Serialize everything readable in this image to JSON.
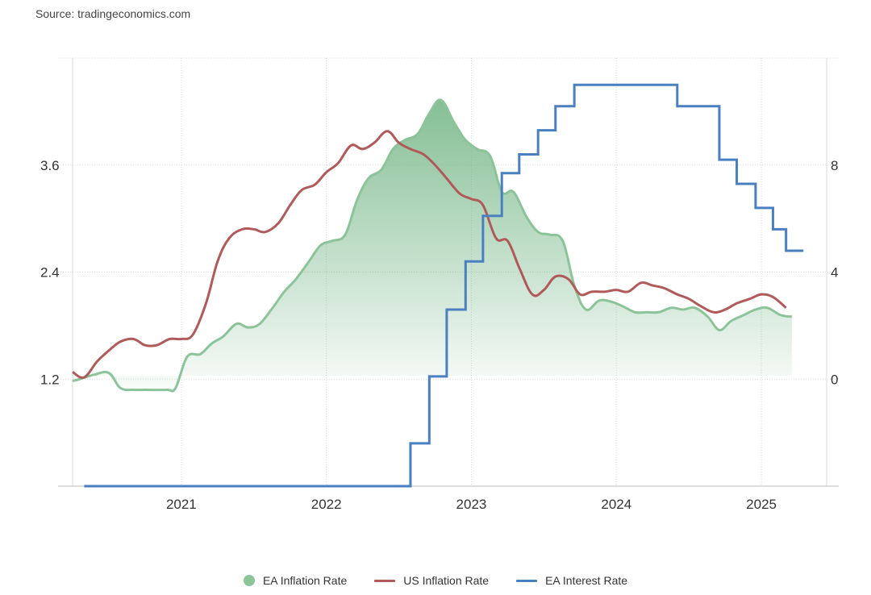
{
  "source": "Source: tradingeconomics.com",
  "colors": {
    "ea_inflation": "#8cc49a",
    "us_inflation": "#b05a5a",
    "ea_interest": "#4a7fc0",
    "grid": "#d8d8d8"
  },
  "chart_data": {
    "type": "line",
    "x_tick_labels": [
      "2021",
      "2022",
      "2023",
      "2024",
      "2025"
    ],
    "x_range": [
      2020.25,
      2025.45
    ],
    "y_left": {
      "ticks": [
        "1.2",
        "2.4",
        "3.6"
      ],
      "range": [
        0.0,
        4.8
      ]
    },
    "y_right": {
      "ticks": [
        "0",
        "4",
        "8"
      ],
      "range": [
        -4,
        12
      ]
    },
    "legend_position": "bottom-center",
    "series": [
      {
        "name": "EA Inflation Rate",
        "style": "area",
        "axis": "left",
        "points": [
          [
            2020.25,
            1.18
          ],
          [
            2020.3,
            1.2
          ],
          [
            2020.4,
            1.25
          ],
          [
            2020.5,
            1.27
          ],
          [
            2020.58,
            1.1
          ],
          [
            2020.67,
            1.08
          ],
          [
            2020.75,
            1.08
          ],
          [
            2020.9,
            1.08
          ],
          [
            2020.96,
            1.1
          ],
          [
            2021.04,
            1.45
          ],
          [
            2021.13,
            1.48
          ],
          [
            2021.21,
            1.6
          ],
          [
            2021.29,
            1.68
          ],
          [
            2021.38,
            1.82
          ],
          [
            2021.46,
            1.78
          ],
          [
            2021.54,
            1.82
          ],
          [
            2021.63,
            2.0
          ],
          [
            2021.71,
            2.18
          ],
          [
            2021.79,
            2.32
          ],
          [
            2021.88,
            2.52
          ],
          [
            2021.96,
            2.7
          ],
          [
            2022.04,
            2.75
          ],
          [
            2022.13,
            2.82
          ],
          [
            2022.21,
            3.2
          ],
          [
            2022.29,
            3.45
          ],
          [
            2022.38,
            3.55
          ],
          [
            2022.46,
            3.78
          ],
          [
            2022.54,
            3.88
          ],
          [
            2022.63,
            3.95
          ],
          [
            2022.71,
            4.18
          ],
          [
            2022.79,
            4.33
          ],
          [
            2022.88,
            4.08
          ],
          [
            2022.96,
            3.88
          ],
          [
            2023.04,
            3.78
          ],
          [
            2023.13,
            3.7
          ],
          [
            2023.21,
            3.3
          ],
          [
            2023.29,
            3.3
          ],
          [
            2023.38,
            3.02
          ],
          [
            2023.46,
            2.85
          ],
          [
            2023.54,
            2.82
          ],
          [
            2023.63,
            2.75
          ],
          [
            2023.71,
            2.25
          ],
          [
            2023.79,
            1.98
          ],
          [
            2023.88,
            2.08
          ],
          [
            2023.96,
            2.07
          ],
          [
            2024.04,
            2.02
          ],
          [
            2024.13,
            1.95
          ],
          [
            2024.21,
            1.95
          ],
          [
            2024.29,
            1.95
          ],
          [
            2024.38,
            2.0
          ],
          [
            2024.46,
            1.98
          ],
          [
            2024.54,
            2.0
          ],
          [
            2024.63,
            1.9
          ],
          [
            2024.71,
            1.75
          ],
          [
            2024.79,
            1.85
          ],
          [
            2024.88,
            1.92
          ],
          [
            2024.96,
            1.98
          ],
          [
            2025.04,
            2.0
          ],
          [
            2025.13,
            1.92
          ],
          [
            2025.21,
            1.9
          ]
        ]
      },
      {
        "name": "US Inflation Rate",
        "style": "line",
        "axis": "left",
        "points": [
          [
            2020.25,
            1.28
          ],
          [
            2020.33,
            1.22
          ],
          [
            2020.42,
            1.4
          ],
          [
            2020.5,
            1.52
          ],
          [
            2020.58,
            1.62
          ],
          [
            2020.67,
            1.65
          ],
          [
            2020.75,
            1.58
          ],
          [
            2020.83,
            1.58
          ],
          [
            2020.92,
            1.65
          ],
          [
            2021.0,
            1.65
          ],
          [
            2021.08,
            1.7
          ],
          [
            2021.17,
            2.05
          ],
          [
            2021.25,
            2.52
          ],
          [
            2021.33,
            2.78
          ],
          [
            2021.42,
            2.88
          ],
          [
            2021.5,
            2.88
          ],
          [
            2021.58,
            2.85
          ],
          [
            2021.67,
            2.95
          ],
          [
            2021.75,
            3.15
          ],
          [
            2021.83,
            3.32
          ],
          [
            2021.92,
            3.38
          ],
          [
            2022.0,
            3.52
          ],
          [
            2022.08,
            3.62
          ],
          [
            2022.17,
            3.82
          ],
          [
            2022.25,
            3.78
          ],
          [
            2022.33,
            3.85
          ],
          [
            2022.42,
            3.98
          ],
          [
            2022.5,
            3.85
          ],
          [
            2022.58,
            3.78
          ],
          [
            2022.67,
            3.72
          ],
          [
            2022.75,
            3.6
          ],
          [
            2022.83,
            3.45
          ],
          [
            2022.92,
            3.28
          ],
          [
            2023.0,
            3.22
          ],
          [
            2023.08,
            3.15
          ],
          [
            2023.17,
            2.78
          ],
          [
            2023.25,
            2.75
          ],
          [
            2023.33,
            2.45
          ],
          [
            2023.42,
            2.15
          ],
          [
            2023.5,
            2.2
          ],
          [
            2023.58,
            2.35
          ],
          [
            2023.67,
            2.32
          ],
          [
            2023.75,
            2.15
          ],
          [
            2023.83,
            2.18
          ],
          [
            2023.92,
            2.18
          ],
          [
            2024.0,
            2.2
          ],
          [
            2024.08,
            2.18
          ],
          [
            2024.17,
            2.28
          ],
          [
            2024.25,
            2.25
          ],
          [
            2024.33,
            2.22
          ],
          [
            2024.42,
            2.15
          ],
          [
            2024.5,
            2.1
          ],
          [
            2024.58,
            2.02
          ],
          [
            2024.67,
            1.95
          ],
          [
            2024.75,
            1.98
          ],
          [
            2024.83,
            2.05
          ],
          [
            2024.92,
            2.1
          ],
          [
            2025.0,
            2.15
          ],
          [
            2025.08,
            2.12
          ],
          [
            2025.17,
            2.0
          ]
        ]
      },
      {
        "name": "EA Interest Rate",
        "style": "step",
        "axis": "right",
        "points": [
          [
            2020.33,
            -4.0
          ],
          [
            2022.5,
            -4.0
          ],
          [
            2022.58,
            -2.4
          ],
          [
            2022.71,
            0.1
          ],
          [
            2022.83,
            2.6
          ],
          [
            2022.96,
            4.4
          ],
          [
            2023.08,
            6.1
          ],
          [
            2023.21,
            7.7
          ],
          [
            2023.33,
            8.4
          ],
          [
            2023.46,
            9.3
          ],
          [
            2023.58,
            10.2
          ],
          [
            2023.71,
            11.0
          ],
          [
            2024.42,
            10.2
          ],
          [
            2024.71,
            8.2
          ],
          [
            2024.83,
            7.3
          ],
          [
            2024.96,
            6.4
          ],
          [
            2025.08,
            5.6
          ],
          [
            2025.17,
            4.8
          ],
          [
            2025.29,
            4.8
          ]
        ]
      }
    ]
  }
}
